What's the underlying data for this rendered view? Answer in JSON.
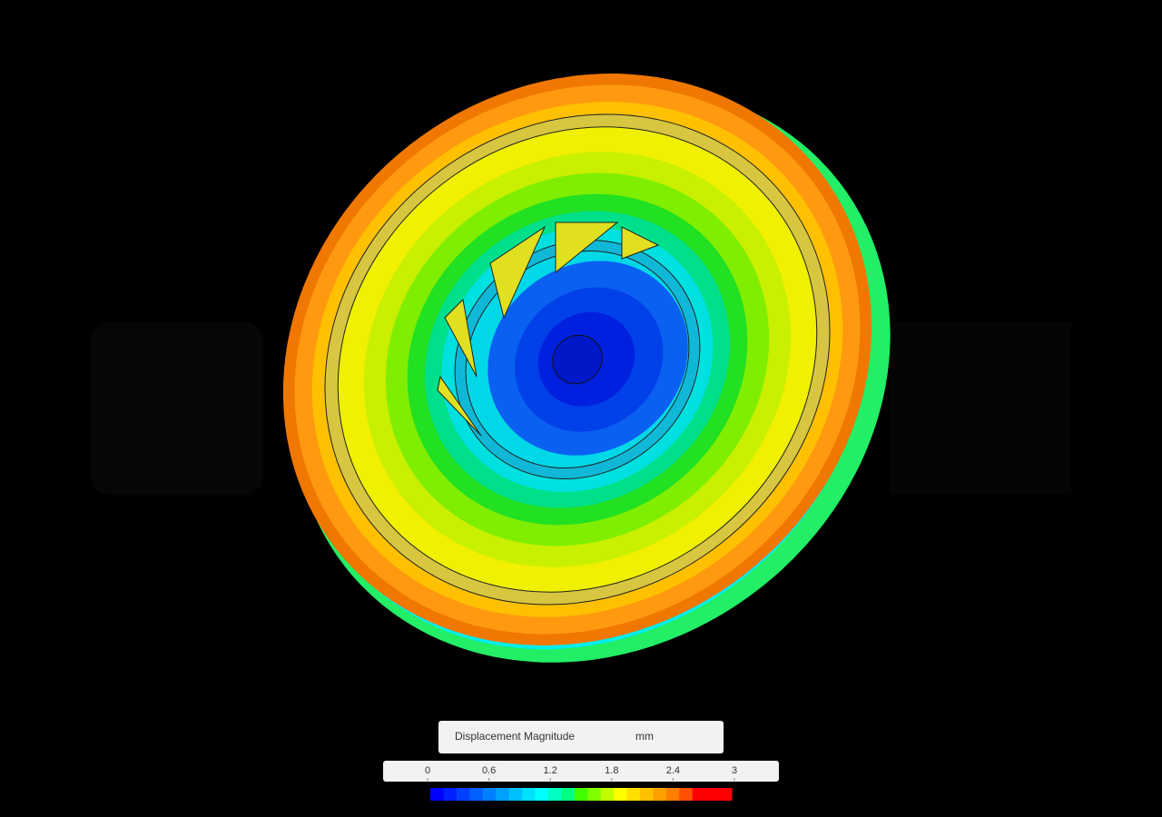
{
  "legend": {
    "title": "Displacement Magnitude",
    "unit": "mm",
    "ticks": [
      0,
      0.6,
      1.2,
      1.8,
      2.4,
      3
    ]
  }
}
